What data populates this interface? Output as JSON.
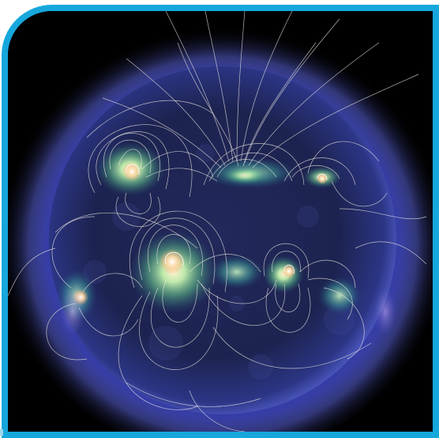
{
  "image": {
    "subject": "sun-magnetic-field-lines",
    "frame_color": "#16a7dc",
    "sky_color": "#000000",
    "disk_color": "#1d2350",
    "corona_color": "#5a63d8",
    "active_region_color": "#9fe8a8",
    "hot_spot_color": "#ffe7c4",
    "field_line_color": "#f2efe6"
  }
}
